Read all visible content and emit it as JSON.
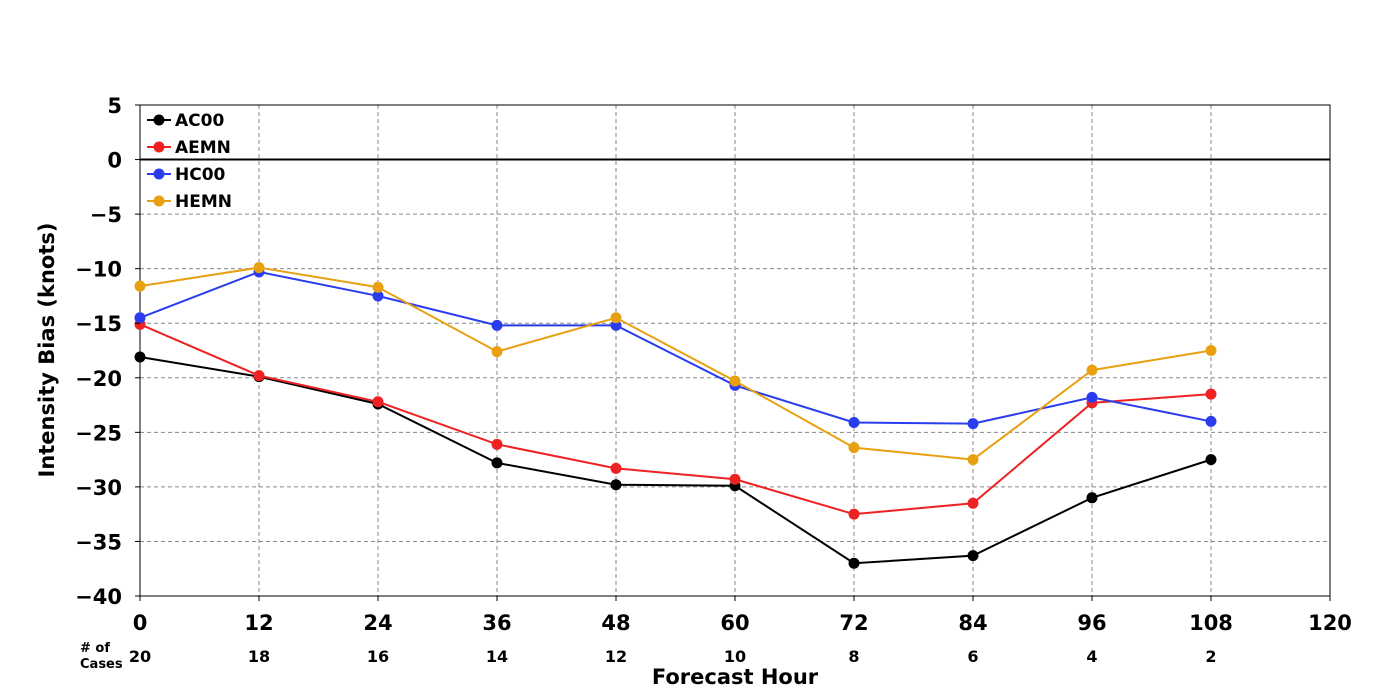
{
  "chart_data": {
    "type": "line",
    "xlabel": "Forecast Hour",
    "ylabel": "Intensity Bias (knots)",
    "xlim": [
      0,
      120
    ],
    "ylim": [
      -40,
      5
    ],
    "x_ticks": [
      0,
      12,
      24,
      36,
      48,
      60,
      72,
      84,
      96,
      108,
      120
    ],
    "y_ticks": [
      5,
      0,
      -5,
      -10,
      -15,
      -20,
      -25,
      -30,
      -35,
      -40
    ],
    "grid": true,
    "zero_line": true,
    "legend_position": "top-left",
    "x": [
      0,
      12,
      24,
      36,
      48,
      60,
      72,
      84,
      96,
      108
    ],
    "series": [
      {
        "name": "AC00",
        "color": "#000000",
        "values": [
          -18.1,
          -19.9,
          -22.4,
          -27.8,
          -29.8,
          -29.9,
          -37.0,
          -36.3,
          -31.0,
          -27.5
        ]
      },
      {
        "name": "AEMN",
        "color": "#ee2222",
        "values": [
          -15.1,
          -19.8,
          -22.2,
          -26.1,
          -28.3,
          -29.3,
          -32.5,
          -31.5,
          -22.3,
          -21.5
        ]
      },
      {
        "name": "HC00",
        "color": "#2a3dee",
        "values": [
          -14.5,
          -10.3,
          -12.5,
          -15.2,
          -15.2,
          -20.7,
          -24.1,
          -24.2,
          -21.8,
          -24.0
        ]
      },
      {
        "name": "HEMN",
        "color": "#e8a010",
        "values": [
          -11.6,
          -9.9,
          -11.7,
          -17.6,
          -14.5,
          -20.3,
          -26.4,
          -27.5,
          -19.3,
          -17.5
        ]
      }
    ],
    "cases_label": [
      "# of",
      "Cases"
    ],
    "cases": [
      20,
      18,
      16,
      14,
      12,
      10,
      8,
      6,
      4,
      2
    ]
  }
}
